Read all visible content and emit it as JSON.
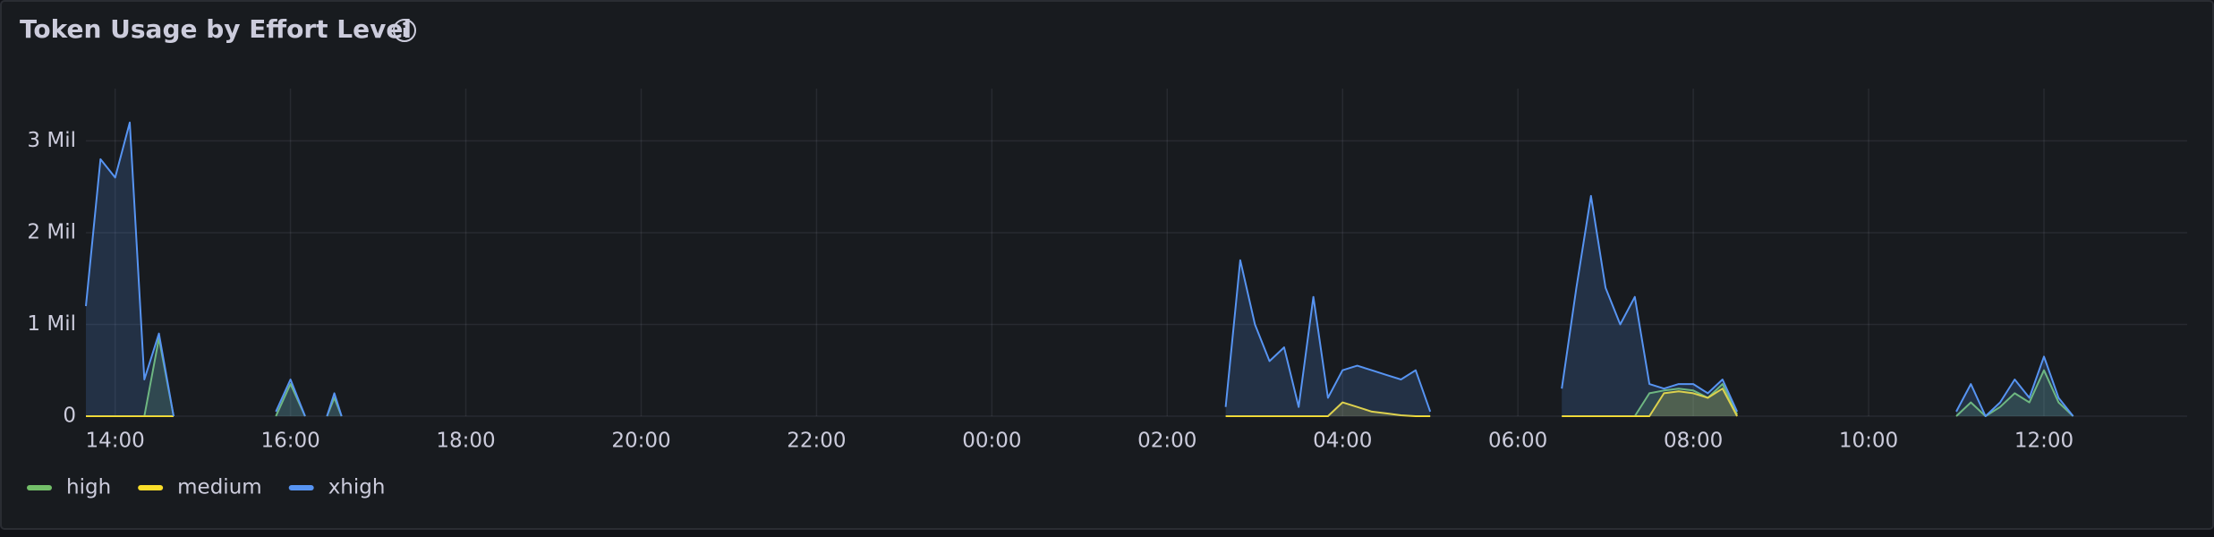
{
  "chart_data": {
    "type": "line",
    "title": "Token Usage by Effort Level",
    "x": [
      "13:40",
      "13:50",
      "14:00",
      "14:10",
      "14:20",
      "14:30",
      "14:40",
      "15:00",
      "15:50",
      "16:00",
      "16:10",
      "16:20",
      "16:25",
      "16:30",
      "16:35",
      "20:00",
      "02:40",
      "02:50",
      "03:00",
      "03:10",
      "03:20",
      "03:30",
      "03:40",
      "03:50",
      "04:00",
      "04:10",
      "04:20",
      "04:30",
      "04:40",
      "04:50",
      "05:00",
      "05:30",
      "06:30",
      "06:40",
      "06:50",
      "07:00",
      "07:10",
      "07:20",
      "07:30",
      "07:40",
      "07:50",
      "08:00",
      "08:10",
      "08:20",
      "08:30",
      "09:30",
      "11:00",
      "11:10",
      "11:20",
      "11:30",
      "11:40",
      "11:50",
      "12:00",
      "12:10",
      "12:20"
    ],
    "series": [
      {
        "name": "high",
        "color": "#73bf69",
        "values": [
          0,
          0,
          0,
          0,
          0,
          850000,
          0,
          null,
          0,
          350000,
          0,
          null,
          0,
          200000,
          0,
          null,
          null,
          null,
          null,
          null,
          null,
          null,
          null,
          null,
          null,
          null,
          null,
          null,
          null,
          null,
          null,
          null,
          null,
          null,
          null,
          null,
          null,
          0,
          250000,
          280000,
          300000,
          280000,
          200000,
          350000,
          20000,
          null,
          0,
          150000,
          0,
          100000,
          250000,
          150000,
          500000,
          150000,
          0
        ]
      },
      {
        "name": "medium",
        "color": "#fade2a",
        "values": [
          0,
          0,
          0,
          0,
          0,
          0,
          0,
          null,
          null,
          null,
          null,
          null,
          null,
          null,
          null,
          null,
          0,
          0,
          0,
          0,
          0,
          0,
          0,
          0,
          150000,
          100000,
          50000,
          30000,
          10000,
          0,
          0,
          null,
          0,
          0,
          0,
          0,
          0,
          0,
          0,
          250000,
          270000,
          250000,
          200000,
          300000,
          0,
          null,
          null,
          null,
          null,
          null,
          null,
          null,
          null,
          null,
          null
        ]
      },
      {
        "name": "xhigh",
        "color": "#5794f2",
        "values": [
          1200000,
          2800000,
          2600000,
          3200000,
          400000,
          900000,
          0,
          null,
          50000,
          400000,
          0,
          null,
          0,
          250000,
          0,
          null,
          100000,
          1700000,
          1000000,
          600000,
          750000,
          100000,
          1300000,
          200000,
          500000,
          550000,
          500000,
          450000,
          400000,
          500000,
          50000,
          null,
          300000,
          1400000,
          2400000,
          1400000,
          1000000,
          1300000,
          350000,
          300000,
          350000,
          350000,
          250000,
          400000,
          50000,
          null,
          50000,
          350000,
          0,
          150000,
          400000,
          200000,
          650000,
          200000,
          0
        ]
      }
    ],
    "xlim": [
      "13:40",
      "13:38"
    ],
    "xticks": [
      "14:00",
      "16:00",
      "18:00",
      "20:00",
      "22:00",
      "00:00",
      "02:00",
      "04:00",
      "06:00",
      "08:00",
      "10:00",
      "12:00"
    ],
    "ylim": [
      0,
      3570000
    ],
    "yticks": [
      0,
      {
        "value": 1000000,
        "label": "1 Mil"
      },
      {
        "value": 2000000,
        "label": "2 Mil"
      },
      {
        "value": 3000000,
        "label": "3 Mil"
      }
    ],
    "grid": true,
    "legend": "bottom-left"
  }
}
